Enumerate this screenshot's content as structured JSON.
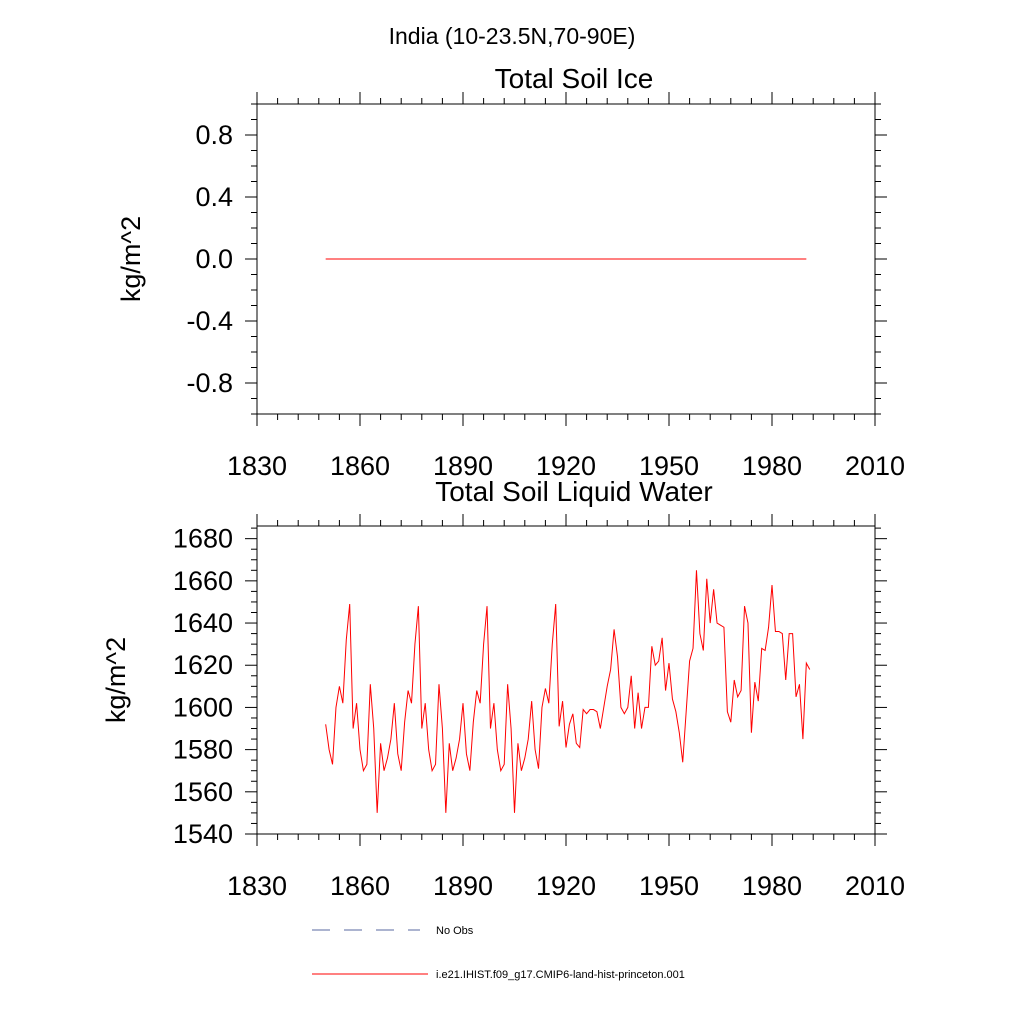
{
  "figure_title": "India (10-23.5N,70-90E)",
  "colors": {
    "model": "#ff0000",
    "obs": "#5a6aa0",
    "axis": "#000000"
  },
  "legend": [
    {
      "label": "No Obs",
      "style": "dashed",
      "color": "#5a6aa0"
    },
    {
      "label": "i.e21.IHIST.f09_g17.CMIP6-land-hist-princeton.001",
      "style": "solid",
      "color": "#ff0000"
    }
  ],
  "chart_data": [
    {
      "type": "line",
      "title": "Total Soil Ice",
      "ylabel": "kg/m^2",
      "xlabel": "",
      "xlim": [
        1830,
        2010
      ],
      "ylim": [
        -1.0,
        1.0
      ],
      "xticks": [
        "1830",
        "1860",
        "1890",
        "1920",
        "1950",
        "1980",
        "2010"
      ],
      "yticks": [
        "-0.8",
        "-0.4",
        "0.0",
        "0.4",
        "0.8"
      ],
      "grid": false,
      "series": [
        {
          "name": "i.e21.IHIST.f09_g17.CMIP6-land-hist-princeton.001",
          "x": [
            1850,
            1990
          ],
          "y": [
            0.0,
            0.0
          ]
        }
      ]
    },
    {
      "type": "line",
      "title": "Total Soil Liquid Water",
      "ylabel": "kg/m^2",
      "xlabel": "",
      "xlim": [
        1830,
        2010
      ],
      "ylim": [
        1540,
        1686
      ],
      "xticks": [
        "1830",
        "1860",
        "1890",
        "1920",
        "1950",
        "1980",
        "2010"
      ],
      "yticks": [
        "1540",
        "1560",
        "1580",
        "1600",
        "1620",
        "1640",
        "1660",
        "1680"
      ],
      "grid": false,
      "series": [
        {
          "name": "i.e21.IHIST.f09_g17.CMIP6-land-hist-princeton.001",
          "x_start": 1850,
          "x_step": 1,
          "y": [
            1592,
            1580,
            1573,
            1600,
            1610,
            1602,
            1632,
            1649,
            1590,
            1602,
            1580,
            1570,
            1573,
            1611,
            1590,
            1550,
            1583,
            1570,
            1576,
            1585,
            1602,
            1578,
            1570,
            1593,
            1608,
            1602,
            1630,
            1648,
            1590,
            1602,
            1580,
            1570,
            1573,
            1611,
            1590,
            1550,
            1583,
            1570,
            1576,
            1585,
            1602,
            1578,
            1570,
            1593,
            1608,
            1602,
            1630,
            1648,
            1590,
            1602,
            1580,
            1570,
            1573,
            1611,
            1590,
            1550,
            1583,
            1570,
            1576,
            1585,
            1603,
            1580,
            1571,
            1600,
            1609,
            1602,
            1630,
            1649,
            1591,
            1603,
            1581,
            1592,
            1597,
            1583,
            1581,
            1599,
            1597,
            1599,
            1599,
            1598,
            1590,
            1600,
            1610,
            1618,
            1637,
            1624,
            1600,
            1597,
            1600,
            1615,
            1590,
            1607,
            1590,
            1600,
            1600,
            1629,
            1620,
            1622,
            1633,
            1608,
            1621,
            1604,
            1598,
            1588,
            1574,
            1598,
            1622,
            1628,
            1665,
            1635,
            1627,
            1661,
            1640,
            1656,
            1640,
            1639,
            1638,
            1598,
            1593,
            1613,
            1605,
            1608,
            1648,
            1640,
            1588,
            1612,
            1603,
            1628,
            1627,
            1638,
            1658,
            1636,
            1636,
            1635,
            1613,
            1635,
            1635,
            1605,
            1611,
            1585,
            1621,
            1618
          ]
        }
      ]
    }
  ]
}
